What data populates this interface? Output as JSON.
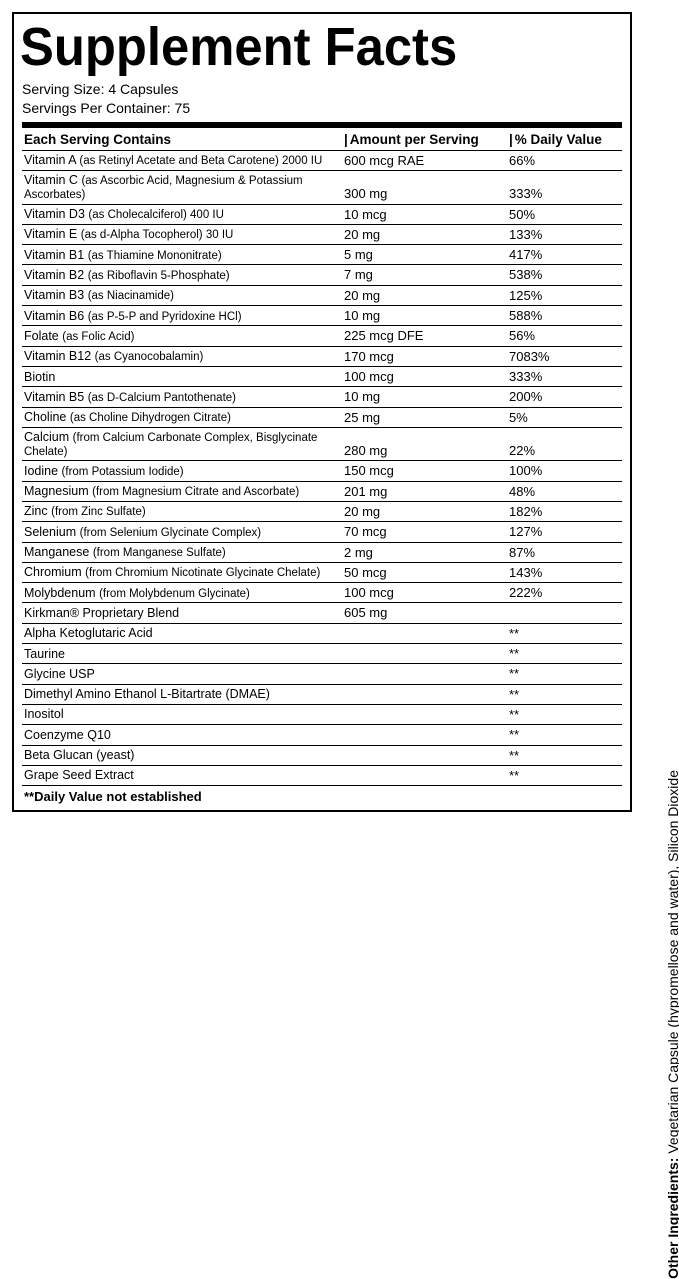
{
  "title": "Supplement Facts",
  "serving_size_label": "Serving Size:",
  "serving_size_value": "4 Capsules",
  "servings_per_label": "Servings Per Container:",
  "servings_per_value": "75",
  "col_name": "Each Serving Contains",
  "col_amount": "Amount per Serving",
  "col_dv": "% Daily Value",
  "rows": [
    {
      "name": "Vitamin A",
      "form": "(as Retinyl Acetate and Beta Carotene) 2000 IU",
      "amount": "600 mcg RAE",
      "dv": "66%"
    },
    {
      "name": "Vitamin C",
      "form": "(as Ascorbic Acid, Magnesium & Potassium  Ascorbates)",
      "amount": "300 mg",
      "dv": "333%"
    },
    {
      "name": "Vitamin D3",
      "form": "(as Cholecalciferol) 400 IU",
      "amount": "10 mcg",
      "dv": "50%"
    },
    {
      "name": "Vitamin E",
      "form": "(as d-Alpha Tocopherol) 30 IU",
      "amount": "20 mg",
      "dv": "133%"
    },
    {
      "name": "Vitamin B1",
      "form": "(as Thiamine Mononitrate)",
      "amount": "5 mg",
      "dv": "417%"
    },
    {
      "name": "Vitamin B2",
      "form": "(as Riboflavin 5-Phosphate)",
      "amount": "7 mg",
      "dv": "538%"
    },
    {
      "name": "Vitamin B3",
      "form": "(as Niacinamide)",
      "amount": "20 mg",
      "dv": "125%"
    },
    {
      "name": "Vitamin B6",
      "form": "(as P-5-P and Pyridoxine HCl)",
      "amount": "10 mg",
      "dv": "588%"
    },
    {
      "name": "Folate",
      "form": "(as Folic Acid)",
      "amount": "225 mcg DFE",
      "dv": "56%"
    },
    {
      "name": "Vitamin B12",
      "form": "(as Cyanocobalamin)",
      "amount": "170 mcg",
      "dv": "7083%"
    },
    {
      "name": "Biotin",
      "form": "",
      "amount": "100 mcg",
      "dv": "333%"
    },
    {
      "name": "Vitamin B5",
      "form": "(as D-Calcium Pantothenate)",
      "amount": "10 mg",
      "dv": "200%"
    },
    {
      "name": "Choline",
      "form": "(as Choline Dihydrogen Citrate)",
      "amount": "25 mg",
      "dv": "5%"
    },
    {
      "name": "Calcium",
      "form": "(from Calcium Carbonate Complex, Bisglycinate Chelate)",
      "amount": "280 mg",
      "dv": "22%"
    },
    {
      "name": "Iodine",
      "form": "(from Potassium Iodide)",
      "amount": "150 mcg",
      "dv": "100%"
    },
    {
      "name": "Magnesium",
      "form": "(from Magnesium Citrate and Ascorbate)",
      "amount": "201 mg",
      "dv": "48%"
    },
    {
      "name": "Zinc",
      "form": "(from Zinc Sulfate)",
      "amount": "20 mg",
      "dv": "182%"
    },
    {
      "name": "Selenium",
      "form": "(from Selenium Glycinate Complex)",
      "amount": "70 mcg",
      "dv": "127%"
    },
    {
      "name": "Manganese",
      "form": "(from Manganese Sulfate)",
      "amount": "2 mg",
      "dv": "87%"
    },
    {
      "name": "Chromium",
      "form": "(from Chromium Nicotinate Glycinate Chelate)",
      "amount": "50 mcg",
      "dv": "143%"
    },
    {
      "name": "Molybdenum",
      "form": "(from Molybdenum Glycinate)",
      "amount": "100 mcg",
      "dv": "222%"
    },
    {
      "name": "Kirkman® Proprietary Blend",
      "form": "",
      "amount": "605 mg",
      "dv": ""
    },
    {
      "name": "Alpha Ketoglutaric Acid",
      "form": "",
      "amount": "",
      "dv": "**"
    },
    {
      "name": "Taurine",
      "form": "",
      "amount": "",
      "dv": "**"
    },
    {
      "name": "Glycine USP",
      "form": "",
      "amount": "",
      "dv": "**"
    },
    {
      "name": "Dimethyl Amino Ethanol L-Bitartrate (DMAE)",
      "form": "",
      "amount": "",
      "dv": "**"
    },
    {
      "name": "Inositol",
      "form": "",
      "amount": "",
      "dv": "**"
    },
    {
      "name": "Coenzyme Q10",
      "form": "",
      "amount": "",
      "dv": "**"
    },
    {
      "name": "Beta Glucan (yeast)",
      "form": "",
      "amount": "",
      "dv": "**"
    },
    {
      "name": "Grape Seed Extract",
      "form": "",
      "amount": "",
      "dv": "**"
    }
  ],
  "footnote": "**Daily Value not established",
  "other_label": "Other Ingredients:",
  "other_value": "Vegetarian Capsule (hypromellose and water), Silicon Dioxide"
}
